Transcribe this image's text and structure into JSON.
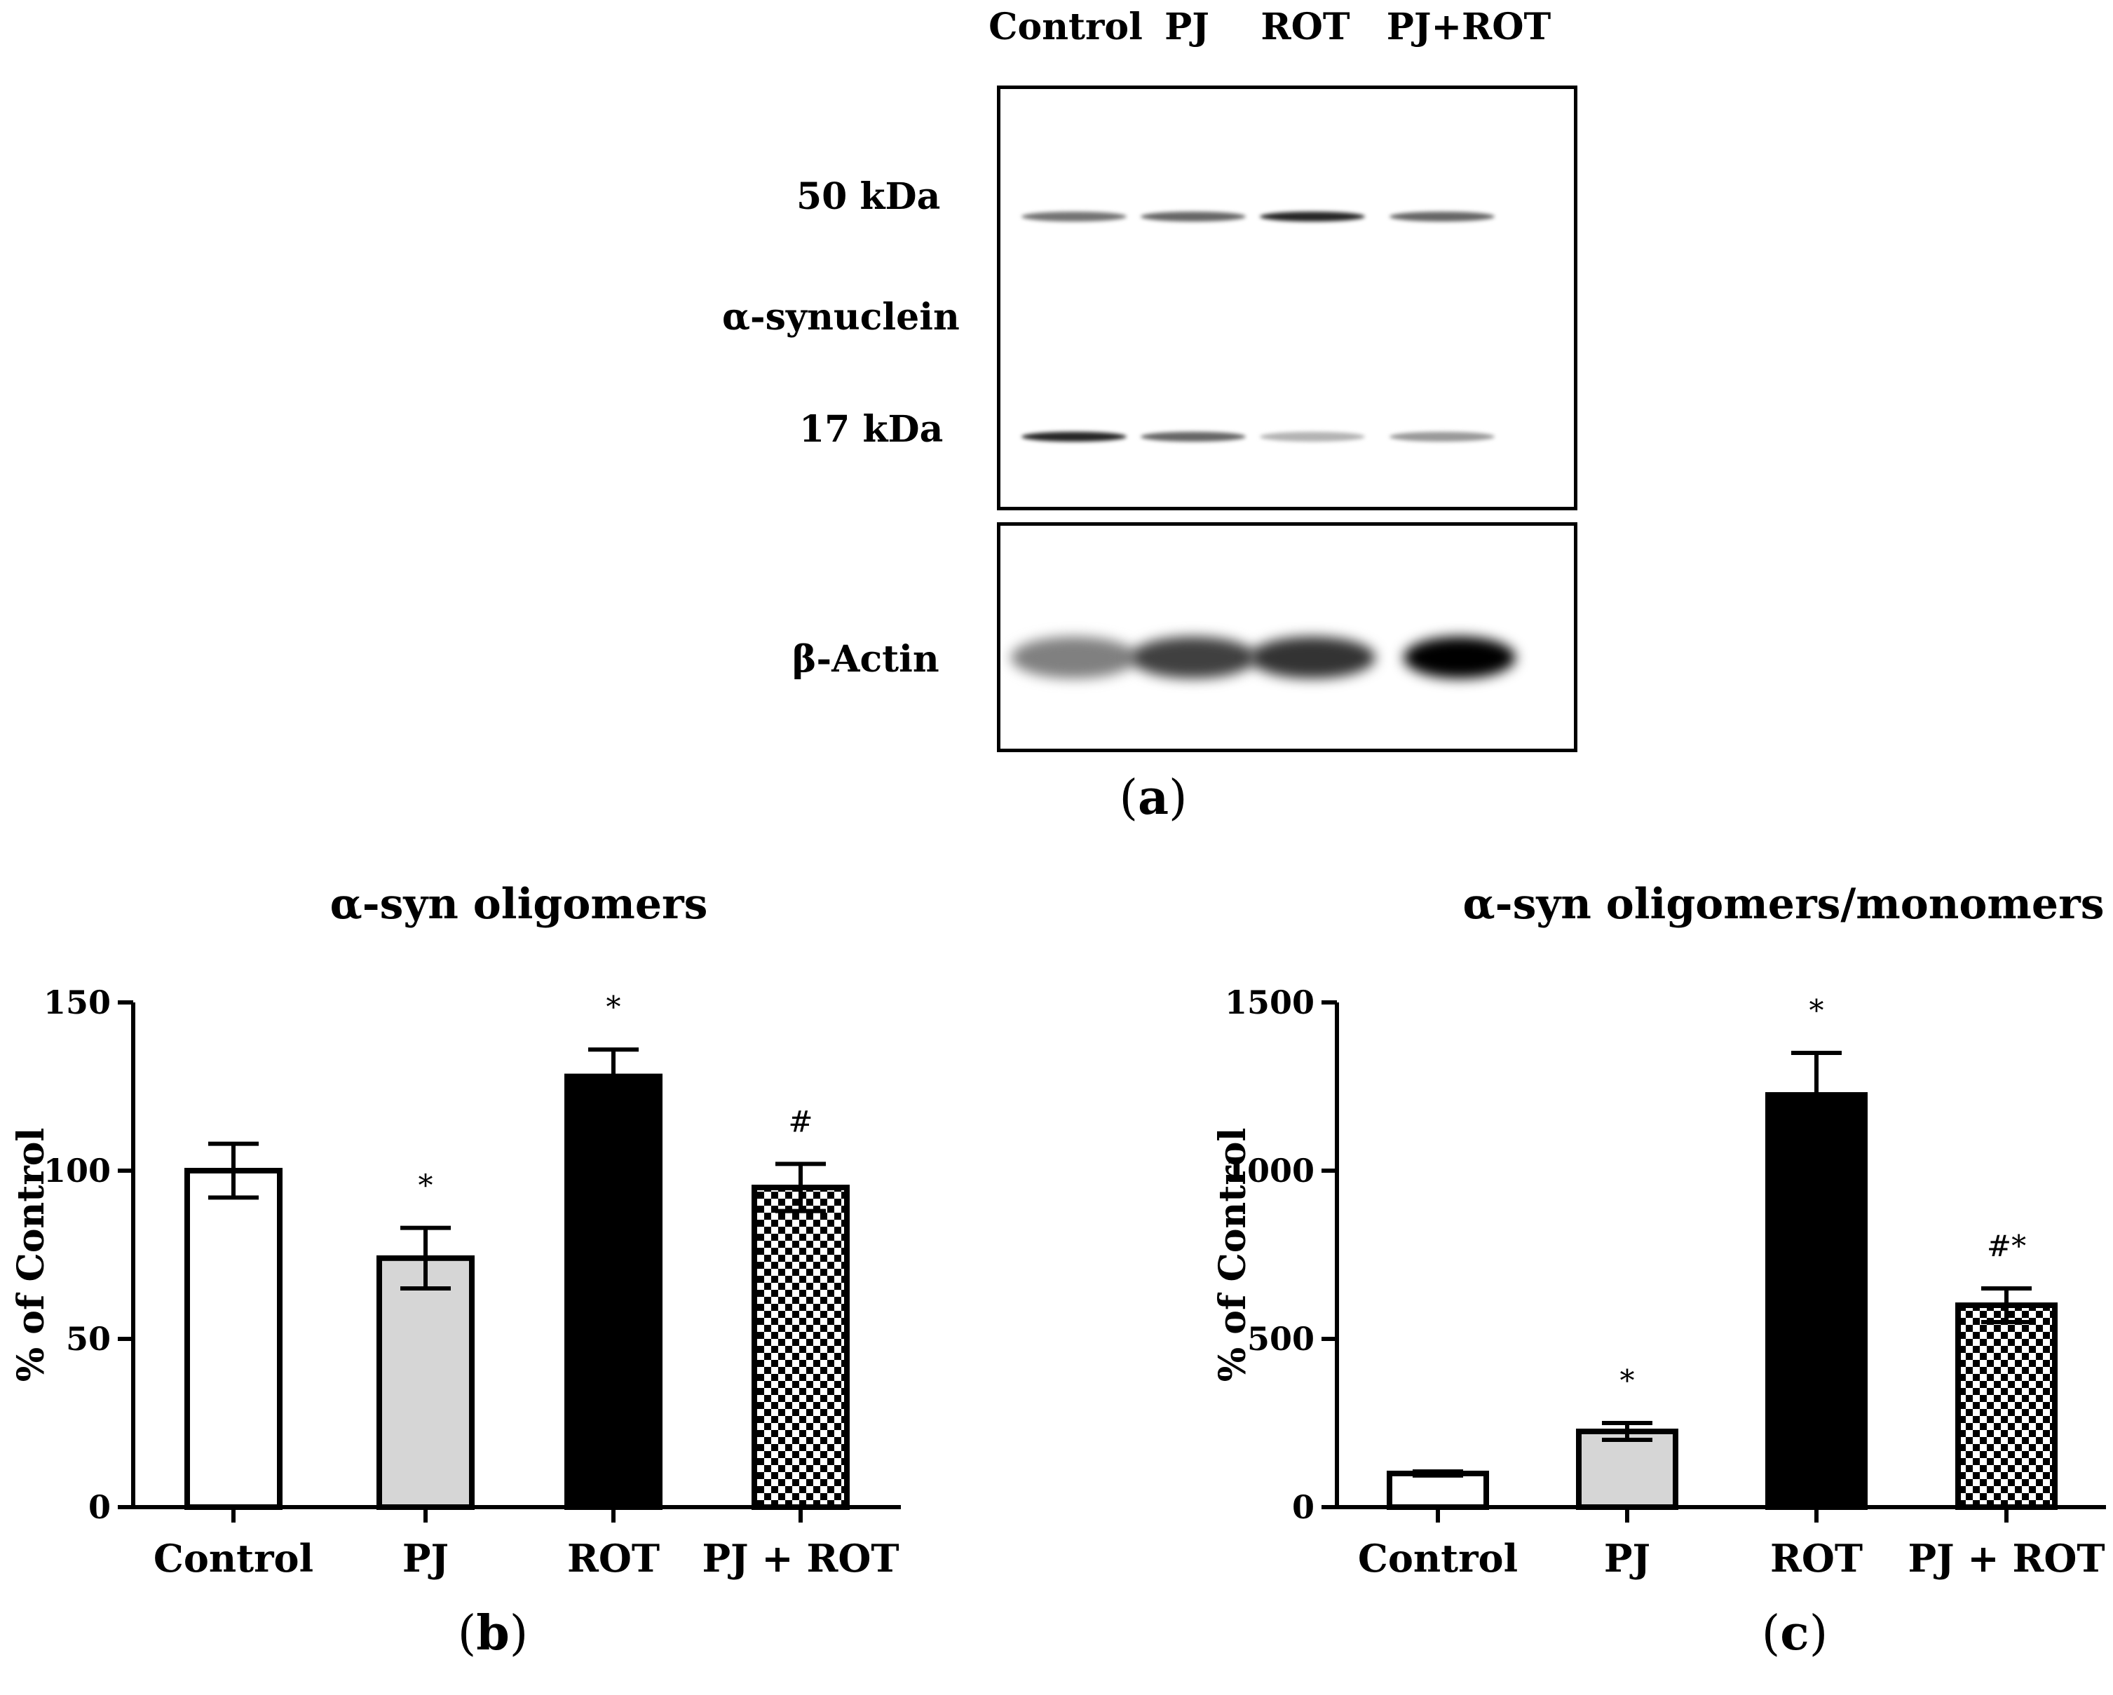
{
  "blot": {
    "lanes": [
      "Control",
      "PJ",
      "ROT",
      "PJ+ROT"
    ],
    "row_labels": {
      "upper_marker": "50 kDa",
      "protein": "α-synuclein",
      "lower_marker": "17 kDa",
      "loading_control": "β-Actin"
    },
    "intensity": {
      "oligomer_50kDa": [
        0.55,
        0.6,
        0.85,
        0.6
      ],
      "monomer_17kDa": [
        0.85,
        0.6,
        0.3,
        0.4
      ],
      "beta_actin": [
        0.5,
        0.75,
        0.8,
        1.0
      ]
    },
    "panel_label": {
      "open": "(",
      "letter": "a",
      "close": ")"
    }
  },
  "chart_data": [
    {
      "type": "bar",
      "title": "α-syn oligomers",
      "ylabel": "% of Control",
      "categories": [
        "Control",
        "PJ",
        "ROT",
        "PJ + ROT"
      ],
      "values": [
        100,
        74,
        128,
        95
      ],
      "errors": [
        8,
        9,
        8,
        7
      ],
      "annotations": [
        "",
        "*",
        "*",
        "#"
      ],
      "ylim": [
        0,
        150
      ],
      "yticks": [
        "0",
        "50",
        "100",
        "150"
      ],
      "ytick_values": [
        0,
        50,
        100,
        150
      ],
      "fills": [
        "white",
        "lightgray",
        "black",
        "checker"
      ],
      "panel_label": {
        "open": "(",
        "letter": "b",
        "close": ")"
      }
    },
    {
      "type": "bar",
      "title": "α-syn oligomers/monomers",
      "ylabel": "% of Control",
      "categories": [
        "Control",
        "PJ",
        "ROT",
        "PJ + ROT"
      ],
      "values": [
        100,
        225,
        1225,
        600
      ],
      "errors": [
        6,
        25,
        125,
        50
      ],
      "annotations": [
        "",
        "*",
        "*",
        "#*"
      ],
      "ylim": [
        0,
        1500
      ],
      "yticks": [
        "0",
        "500",
        "1000",
        "1500"
      ],
      "ytick_values": [
        0,
        500,
        1000,
        1500
      ],
      "fills": [
        "white",
        "lightgray",
        "black",
        "checker"
      ],
      "panel_label": {
        "open": "(",
        "letter": "c",
        "close": ")"
      }
    }
  ]
}
